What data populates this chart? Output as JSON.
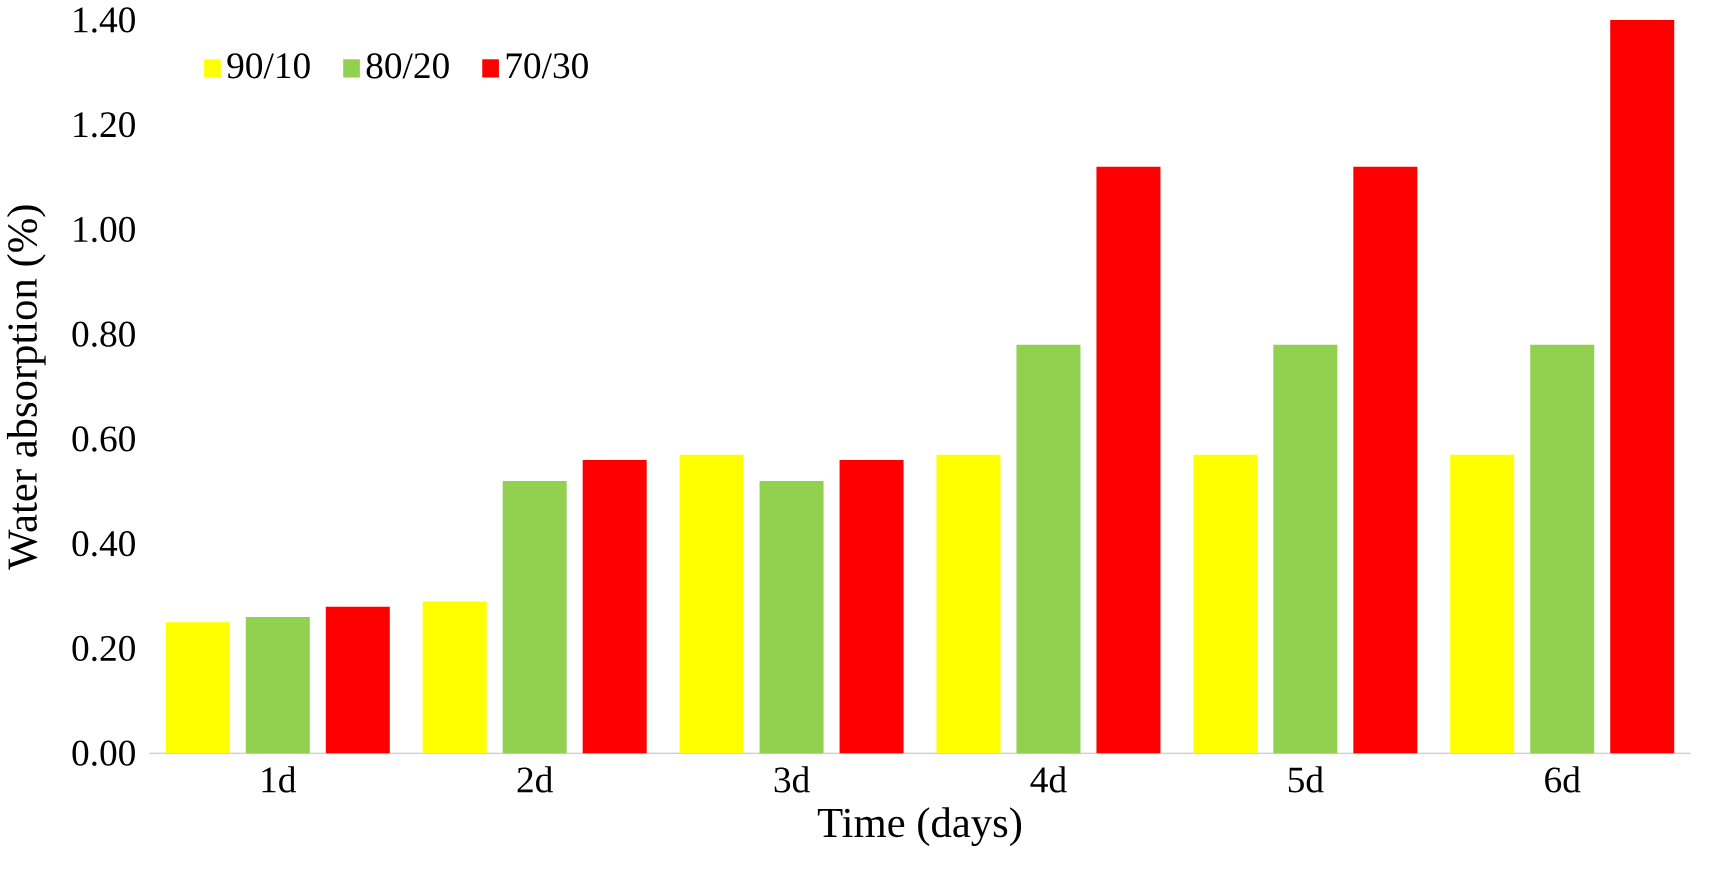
{
  "chart_data": {
    "type": "bar",
    "xlabel": "Time (days)",
    "ylabel": "Water absorption (%)",
    "categories": [
      "1d",
      "2d",
      "3d",
      "4d",
      "5d",
      "6d"
    ],
    "series": [
      {
        "name": "90/10",
        "color": "#ffff00",
        "values": [
          0.25,
          0.29,
          0.57,
          0.57,
          0.57,
          0.57
        ]
      },
      {
        "name": "80/20",
        "color": "#92d050",
        "values": [
          0.26,
          0.52,
          0.52,
          0.78,
          0.78,
          0.78
        ]
      },
      {
        "name": "70/30",
        "color": "#ff0000",
        "values": [
          0.28,
          0.56,
          0.56,
          1.12,
          1.12,
          1.4
        ]
      }
    ],
    "ylim": [
      0,
      1.4
    ],
    "yticks": [
      {
        "value": 0,
        "label": "0.00"
      },
      {
        "value": 0.2,
        "label": "0.20"
      },
      {
        "value": 0.4,
        "label": "0.40"
      },
      {
        "value": 0.6,
        "label": "0.60"
      },
      {
        "value": 0.8,
        "label": "0.80"
      },
      {
        "value": 1.0,
        "label": "1.00"
      },
      {
        "value": 1.2,
        "label": "1.20"
      },
      {
        "value": 1.4,
        "label": "1.40"
      }
    ],
    "grid": false,
    "legend": "top left"
  }
}
